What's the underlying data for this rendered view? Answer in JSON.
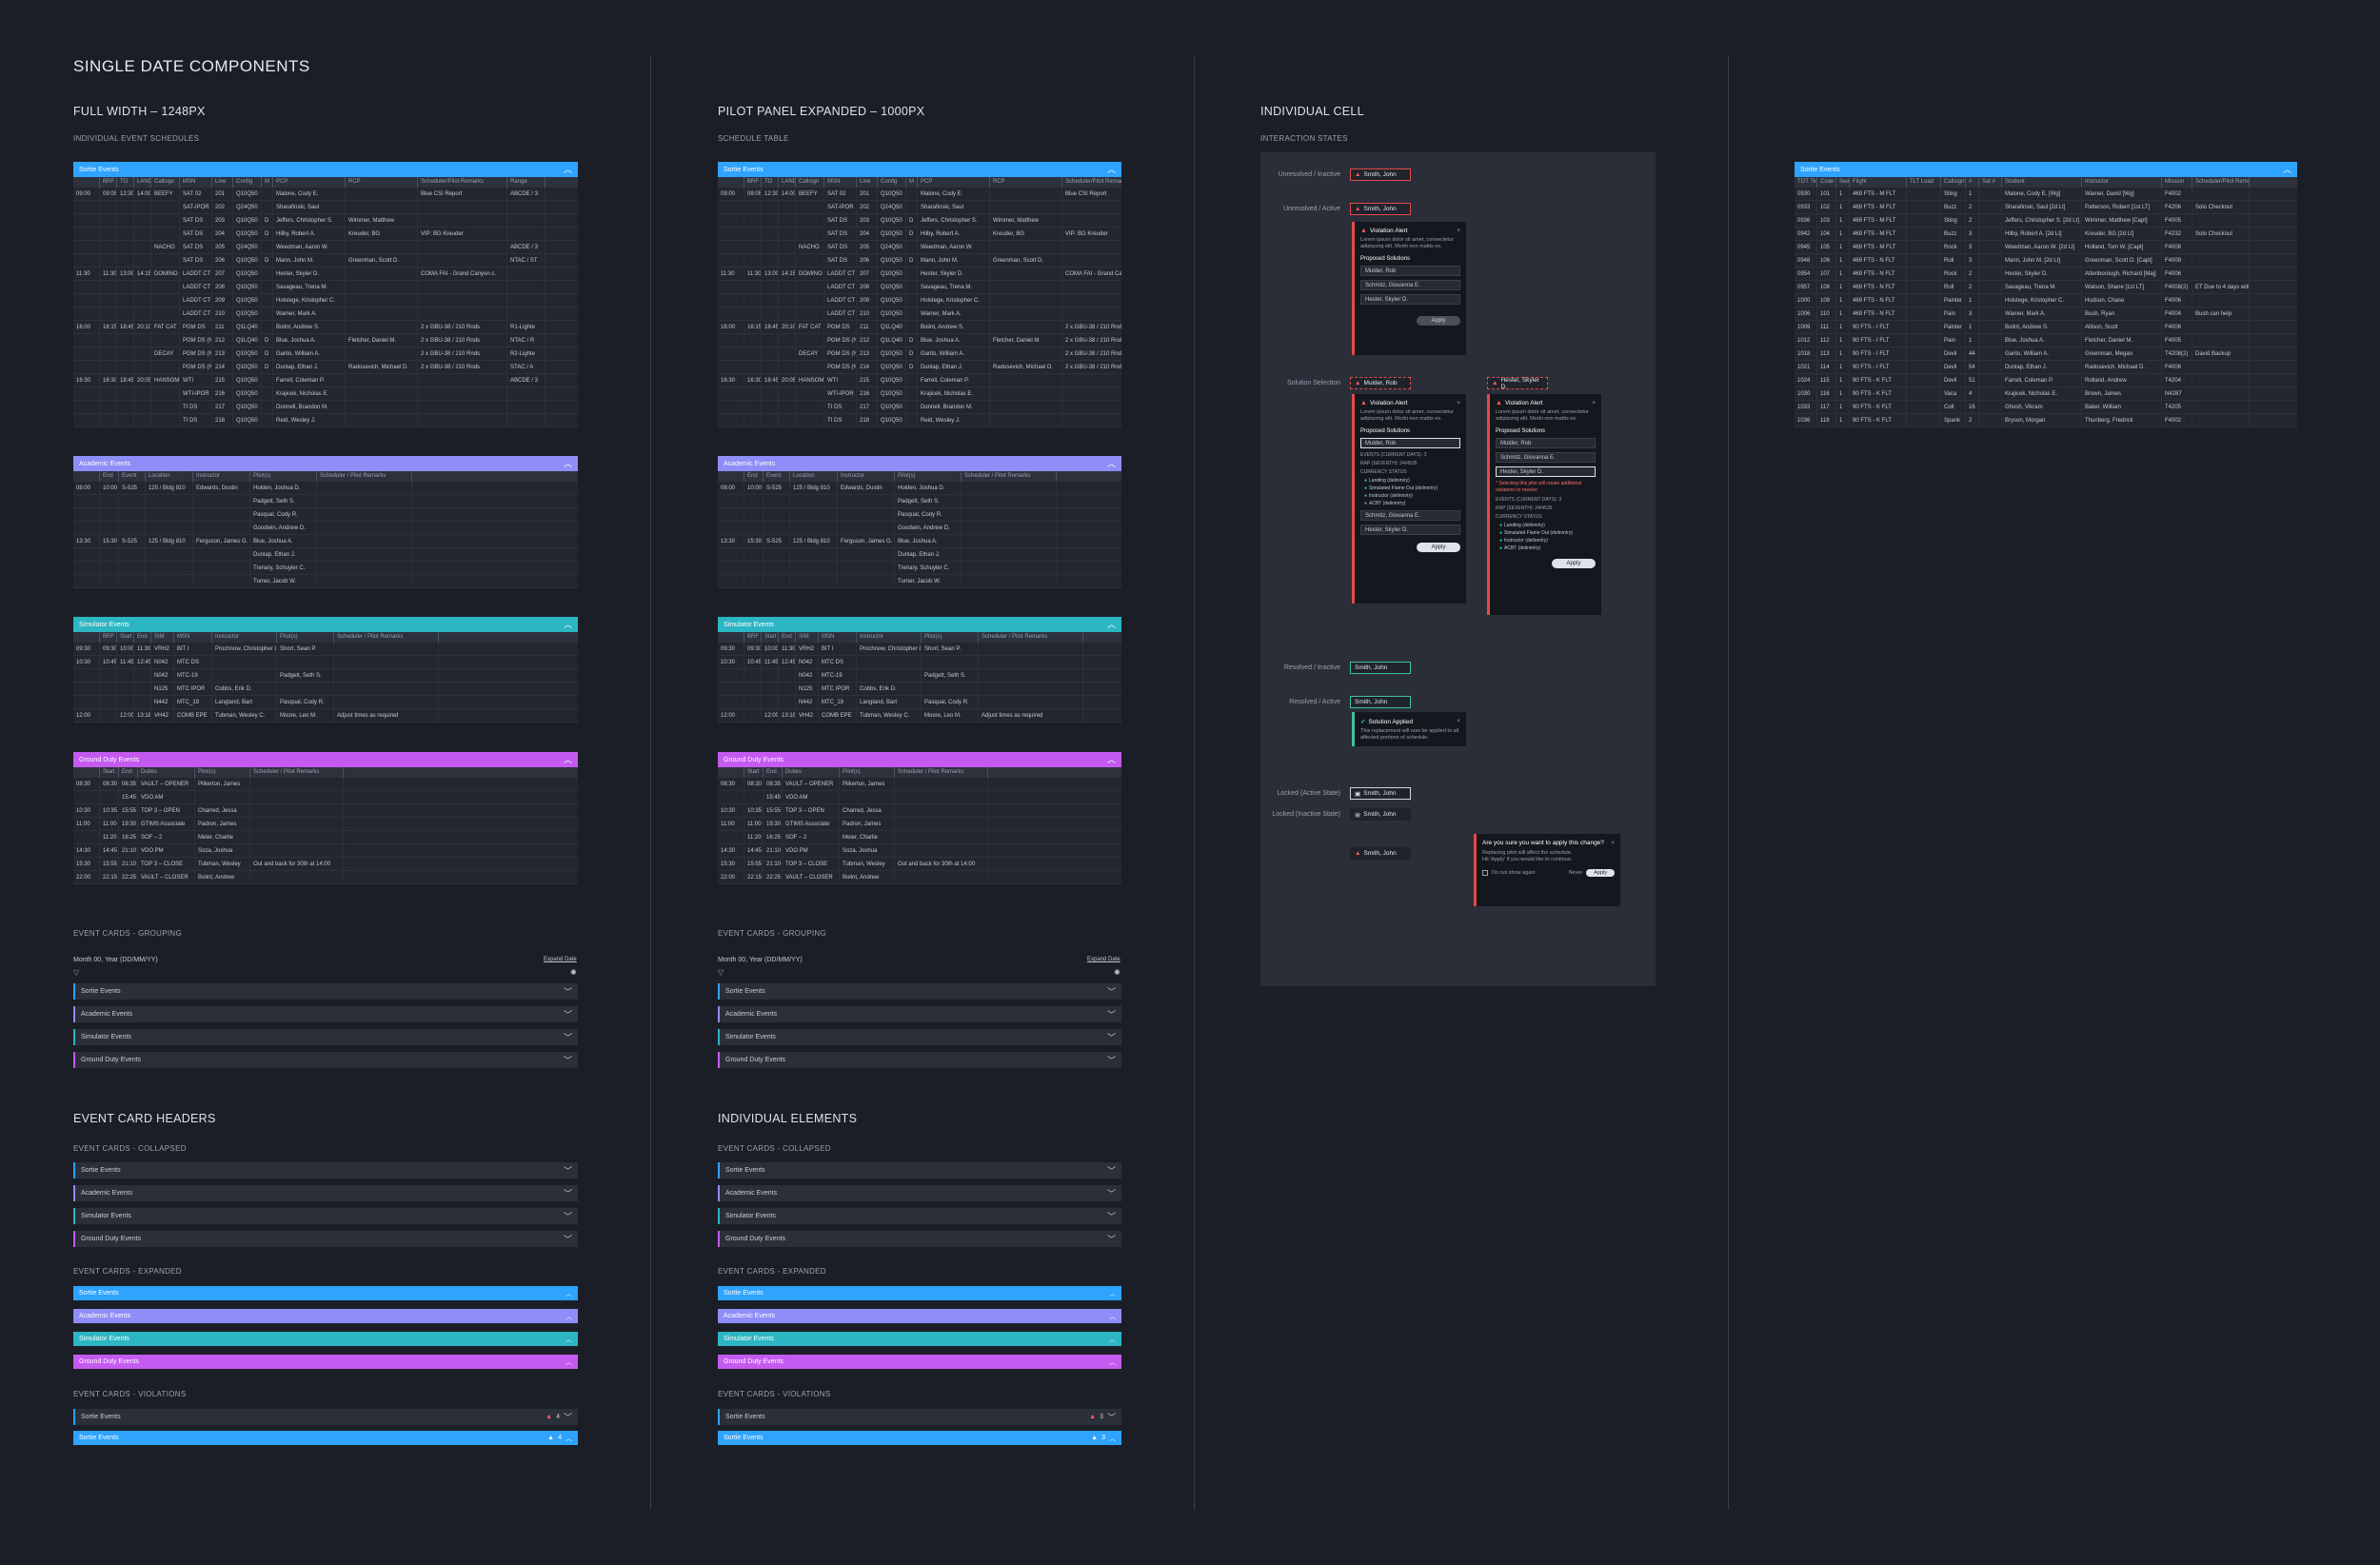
{
  "colors": {
    "sortie": "#2ea3ff",
    "academic": "#8f8df7",
    "simulator": "#2cb5c2",
    "ground": "#c45af0",
    "alert": "#e24a4a",
    "resolved": "#3ec2a2"
  },
  "titles": {
    "main": "SINGLE DATE COMPONENTS",
    "full_width": "FULL WIDTH – 1248PX",
    "pilot_panel": "PILOT PANEL EXPANDED – 1000PX",
    "individual_cell": "INDIVIDUAL CELL",
    "event_card_headers": "EVENT CARD HEADERS",
    "individual_elements": "INDIVIDUAL ELEMENTS"
  },
  "subtitles": {
    "schedules": "INDIVIDUAL EVENT SCHEDULES",
    "schedule_table": "SCHEDULE TABLE",
    "interaction_states": "INTERACTION STATES",
    "grouping": "EVENT CARDS - GROUPING",
    "collapsed": "EVENT CARDS - COLLAPSED",
    "expanded": "EVENT CARDS - EXPANDED",
    "violations": "EVENT CARDS - VIOLATIONS"
  },
  "events": {
    "sortie": "Sortie Events",
    "academic": "Academic Events",
    "simulator": "Simulator Events",
    "ground": "Ground Duty Events"
  },
  "grouping": {
    "date": "Month 00, Year (DD/MM/YY)",
    "expand": "Expand Date"
  },
  "sortie_cols": [
    "",
    "BRF",
    "TO",
    "LAND",
    "Callsign",
    "MSN",
    "Line",
    "Config",
    "M",
    "PCP",
    "RCP",
    "Scheduler/Pilot Remarks",
    "Range"
  ],
  "sortie_rows": [
    [
      "09:00",
      "09:05",
      "12:30",
      "14:00",
      "BEEFY",
      "SAT 02",
      "201",
      "Q10Q50",
      "",
      "Malone, Cody E.",
      "",
      "Blue CSI Report",
      "ABCDE / 3"
    ],
    [
      "",
      "",
      "",
      "",
      "",
      "SAT-IPOR",
      "202",
      "Q24Q50",
      "",
      "Sharafinski, Saul",
      "",
      "",
      ""
    ],
    [
      "",
      "",
      "",
      "",
      "",
      "SAT DS",
      "203",
      "Q10Q50",
      "D",
      "Jeffers, Christopher S.",
      "Wimmer, Matthew",
      "",
      ""
    ],
    [
      "",
      "",
      "",
      "",
      "",
      "SAT DS",
      "204",
      "Q10Q50",
      "D",
      "Hilby, Robert A.",
      "Kreuder, BG",
      "VIP: BG Kreuder",
      ""
    ],
    [
      "",
      "",
      "",
      "",
      "NACHO",
      "SAT DS",
      "205",
      "Q24Q50",
      "",
      "Weedman, Aaron W.",
      "",
      "",
      "ABCDE / 3"
    ],
    [
      "",
      "",
      "",
      "",
      "",
      "SAT DS",
      "206",
      "Q10Q50",
      "D",
      "Mann, John M.",
      "Greenman, Scott D.",
      "",
      "NTAC / ST"
    ],
    [
      "11:30",
      "11:30",
      "13:00",
      "14:15",
      "DOMINO",
      "LADDT CT",
      "207",
      "Q10Q50",
      "",
      "Hester, Skyler D.",
      "",
      "COMA FAI - Grand Canyon c.",
      ""
    ],
    [
      "",
      "",
      "",
      "",
      "",
      "LADDT CT",
      "208",
      "Q10Q50",
      "",
      "Savageau, Trena M.",
      "",
      "",
      ""
    ],
    [
      "",
      "",
      "",
      "",
      "",
      "LADDT CT",
      "209",
      "Q10Q50",
      "",
      "Holstege, Kristopher C.",
      "",
      "",
      ""
    ],
    [
      "",
      "",
      "",
      "",
      "",
      "LADDT CT",
      "210",
      "Q10Q50",
      "",
      "Warner, Mark A.",
      "",
      "",
      ""
    ],
    [
      "16:00",
      "16:15",
      "18:45",
      "20:10",
      "FAT CAT",
      "PGM DS",
      "211",
      "Q1LQ40",
      "",
      "Bolint, Andrew S.",
      "",
      "2 x GBU-38 / 210 Rnds",
      "R1-Lighte"
    ],
    [
      "",
      "",
      "",
      "",
      "",
      "PGM DS (N)",
      "212",
      "Q1LQ40",
      "D",
      "Blue, Joshua A.",
      "Fletcher, Daniel M.",
      "2 x GBU-38 / 210 Rnds",
      "NTAC / R"
    ],
    [
      "",
      "",
      "",
      "",
      "DECAY",
      "PGM DS (N)",
      "213",
      "Q10Q50",
      "D",
      "Garito, William A.",
      "",
      "2 x GBU-38 / 210 Rnds",
      "R2-Lighte"
    ],
    [
      "",
      "",
      "",
      "",
      "",
      "PGM DS (N)",
      "214",
      "Q10Q50",
      "D",
      "Dunlap, Ethan J.",
      "Radosevich, Michael D.",
      "2 x GBU-38 / 210 Rnds",
      "STAC / A"
    ],
    [
      "16:30",
      "16:30",
      "18:45",
      "20:05",
      "HANSOM",
      "WTI",
      "215",
      "Q10Q50",
      "",
      "Farrell, Coleman P.",
      "",
      "",
      "ABCDE / 3"
    ],
    [
      "",
      "",
      "",
      "",
      "",
      "WTI-IPOR",
      "216",
      "Q10Q50",
      "",
      "Krajicek, Nicholas E.",
      "",
      "",
      ""
    ],
    [
      "",
      "",
      "",
      "",
      "",
      "TI DS",
      "217",
      "Q10Q50",
      "",
      "Donnell, Brandon M.",
      "",
      "",
      ""
    ],
    [
      "",
      "",
      "",
      "",
      "",
      "TI DS",
      "218",
      "Q10Q50",
      "",
      "Reid, Wesley J.",
      "",
      "",
      ""
    ]
  ],
  "academic_cols": [
    "",
    "End",
    "Event",
    "Location",
    "Instructor",
    "Pilot(s)",
    "Scheduler / Pilot Remarks"
  ],
  "academic_rows": [
    [
      "08:00",
      "10:00",
      "S-525",
      "125 / Bldg 810",
      "Edwards, Dustin",
      "Holden, Joshua D.",
      ""
    ],
    [
      "",
      "",
      "",
      "",
      "",
      "Padgett, Seth S.",
      ""
    ],
    [
      "",
      "",
      "",
      "",
      "",
      "Pasqual, Cody R.",
      ""
    ],
    [
      "",
      "",
      "",
      "",
      "",
      "Goodwin, Andrew D.",
      ""
    ],
    [
      "13:30",
      "15:30",
      "S-525",
      "125 / Bldg 810",
      "Ferguson, James G.",
      "Blue, Joshua A.",
      ""
    ],
    [
      "",
      "",
      "",
      "",
      "",
      "Dunlap, Ethan J.",
      ""
    ],
    [
      "",
      "",
      "",
      "",
      "",
      "Trenary, Schuyler C.",
      ""
    ],
    [
      "",
      "",
      "",
      "",
      "",
      "Turner, Jacob W.",
      ""
    ]
  ],
  "sim_cols": [
    "",
    "BRF",
    "Start",
    "End",
    "SIM",
    "MSN",
    "Instructor",
    "Pilot(s)",
    "Scheduler / Pilot Remarks"
  ],
  "sim_rows": [
    [
      "09:30",
      "09:30",
      "10:00",
      "11:30",
      "VRH2",
      "BIT I",
      "Prochnow, Christopher L.",
      "Short, Sean P.",
      ""
    ],
    [
      "10:30",
      "10:45",
      "11:45",
      "12:45",
      "N042",
      "MTC DS",
      "",
      "",
      ""
    ],
    [
      "",
      "",
      "",
      "",
      "N042",
      "MTC-19",
      "",
      "Padgett, Seth S.",
      ""
    ],
    [
      "",
      "",
      "",
      "",
      "N125",
      "MTC IPOR",
      "Cobbs, Erik D.",
      "",
      ""
    ],
    [
      "",
      "",
      "",
      "",
      "N442",
      "MTC_19",
      "Langland, Bart",
      "Pasqual, Cody R.",
      ""
    ],
    [
      "12:00",
      "",
      "12:00",
      "13:18",
      "VH42",
      "COMB EPE",
      "Tubman, Wesley C.",
      "Moore, Leo M.",
      "Adjust times as required"
    ]
  ],
  "ground_cols": [
    "",
    "Start",
    "End",
    "Duties",
    "Pilot(s)",
    "Scheduler / Pilot Remarks"
  ],
  "ground_rows": [
    [
      "08:30",
      "08:30",
      "08:35",
      "VAULT – OPENER",
      "Pilkerton, James",
      ""
    ],
    [
      "",
      "",
      "15:45",
      "VDO AM",
      "",
      ""
    ],
    [
      "10:30",
      "10:35",
      "15:55",
      "TOP 3 – OPEN",
      "Charred, Jessa",
      ""
    ],
    [
      "11:00",
      "11:00",
      "19:30",
      "GTIMS Associate",
      "Padron, James",
      ""
    ],
    [
      "",
      "11:20",
      "16:25",
      "SOF – 2",
      "Meier, Charlie",
      ""
    ],
    [
      "14:30",
      "14:45",
      "21:10",
      "VDO PM",
      "Soza, Joshua",
      ""
    ],
    [
      "15:30",
      "15:55",
      "21:10",
      "TOP 3 – CLOSE",
      "Tubman, Wesley",
      "Out and back for 30th at 14:00"
    ],
    [
      "22:00",
      "22:15",
      "22:25",
      "VAULT – CLOSER",
      "Bolint, Andrew",
      ""
    ]
  ],
  "states": {
    "unresolved_inactive": "Unresolved / Inactive",
    "unresolved_active": "Unresolved / Active",
    "solution_selection": "Solution Selection",
    "resolved_inactive": "Resolved / Inactive",
    "resolved_active": "Resolved / Active",
    "locked_active": "Locked (Active State)",
    "locked_inactive": "Locked (Inactive State)"
  },
  "cell_names": {
    "smith": "Smith, John",
    "mulder": "Mulder, Rob",
    "hester": "Hester, Skyler D."
  },
  "violation": {
    "title": "Violation Alert",
    "body": "Lorem ipsum dolor sit amet, consectetur adipiscing elit. Morbi non mattis ex.",
    "proposed": "Proposed Solutions",
    "options": [
      "Mulder, Rob",
      "Schmitz, Giovanna E.",
      "Hester, Skyler D."
    ],
    "apply": "Apply",
    "events_current": "EVENTS (CURRENT DAYS): 3",
    "rap": "RAP (SEVENTH): 24/4535",
    "currency": "CURRENCY STATUS",
    "currency_items": [
      "Landing (delinm/ry)",
      "Simulated Flame Out (delinm/ry)",
      "Instructor (delinm/ry)",
      "ACBT (delinm/ry)"
    ],
    "warning": "* Selecting this pilot will create additional violations to resolve"
  },
  "applied": {
    "title": "Solution Applied",
    "body": "This replacement will now be applied to all affected portions of schedule."
  },
  "confirm": {
    "question": "Are you sure you want to apply this change?",
    "body": "Replacing pilot will affect the schedule.",
    "body2": "Hit 'Apply' if you would like to continue.",
    "dont_show": "Do not show again",
    "cancel": "Never",
    "apply": "Apply"
  },
  "violation_counts": {
    "full_1": "4",
    "full_2": "4",
    "panel_1": "3",
    "panel_2": "3"
  },
  "side_cols": [
    "TOT Time",
    "Code #",
    "Seat",
    "Flight",
    "TLT Load",
    "Callsign",
    "#",
    "Sat #",
    "Student",
    "Instructor",
    "Mission",
    "Scheduler/Pilot Remarks"
  ],
  "side_rows": [
    [
      "0930",
      "101",
      "1",
      "469 FTS - M FLT",
      "",
      "Sting",
      "1",
      "",
      "Malone, Cody E. [Wg]",
      "Warner, David [Wg]",
      "F4002",
      ""
    ],
    [
      "0933",
      "102",
      "1",
      "469 FTS - M FLT",
      "",
      "Buzz",
      "2",
      "",
      "Sharafinski, Saul [2d Lt]",
      "Patterson, Robert [1st LT]",
      "F4206",
      "Solo Checkout"
    ],
    [
      "0936",
      "103",
      "1",
      "469 FTS - M FLT",
      "",
      "Sting",
      "2",
      "",
      "Jeffers, Christopher S. [2d Lt]",
      "Wimmer, Matthew [Capt]",
      "F4005",
      ""
    ],
    [
      "0942",
      "104",
      "1",
      "469 FTS - M FLT",
      "",
      "Buzz",
      "3",
      "",
      "Hilby, Robert A. [2d Lt]",
      "Kreuder, BG [2d Lt]",
      "F4232",
      "Solo Checkout"
    ],
    [
      "0945",
      "105",
      "1",
      "469 FTS - M FLT",
      "",
      "Rock",
      "3",
      "",
      "Weedman, Aaron W. [2d Lt]",
      "Holland, Tom W. [Capt]",
      "F4008",
      ""
    ],
    [
      "0948",
      "106",
      "1",
      "469 FTS - N FLT",
      "",
      "Roll",
      "3",
      "",
      "Mann, John M. [2d Lt]",
      "Greenman, Scott D. [Capt]",
      "F4009",
      ""
    ],
    [
      "0954",
      "107",
      "1",
      "469 FTS - N FLT",
      "",
      "Rock",
      "2",
      "",
      "Hester, Skyler D.",
      "Attenborough, Richard [Maj]",
      "F4006",
      ""
    ],
    [
      "0957",
      "108",
      "1",
      "469 FTS - N FLT",
      "",
      "Roll",
      "2",
      "",
      "Savageau, Trena M.",
      "Watson, Shane [1st LT]",
      "F4008(2)",
      "ET Due to 4 days without"
    ],
    [
      "1000",
      "109",
      "1",
      "469 FTS - N FLT",
      "",
      "Painter",
      "1",
      "",
      "Holstege, Kristopher C.",
      "Hudson, Chase",
      "F4006",
      ""
    ],
    [
      "1006",
      "110",
      "1",
      "469 FTS - N FLT",
      "",
      "Pain",
      "3",
      "",
      "Warner, Mark A.",
      "Bush, Ryan",
      "F4004",
      "Bush can help"
    ],
    [
      "1009",
      "111",
      "1",
      "90 FTS - I FLT",
      "",
      "Painter",
      "1",
      "",
      "Bolint, Andrew S.",
      "Allison, Scott",
      "F4006",
      ""
    ],
    [
      "1012",
      "112",
      "1",
      "90 FTS - I FLT",
      "",
      "Pain",
      "1",
      "",
      "Blue, Joshua A.",
      "Fletcher, Daniel M.",
      "F4005",
      ""
    ],
    [
      "1018",
      "113",
      "1",
      "90 FTS - I FLT",
      "",
      "Devil",
      "44",
      "",
      "Garito, William A.",
      "Greenman, Megan",
      "T4208(2)",
      "David Backup"
    ],
    [
      "1021",
      "114",
      "1",
      "90 FTS - I FLT",
      "",
      "Devil",
      "54",
      "",
      "Dunlap, Ethan J.",
      "Radosevich, Michael D.",
      "F4006",
      ""
    ],
    [
      "1024",
      "115",
      "1",
      "90 FTS - K FLT",
      "",
      "Devil",
      "51",
      "",
      "Farrell, Coleman P.",
      "Rolland, Andrew",
      "T4204",
      ""
    ],
    [
      "1030",
      "116",
      "1",
      "90 FTS - K FLT",
      "",
      "Vaca",
      "4",
      "",
      "Krajicek, Nicholas E.",
      "Brown, James",
      "N4287",
      ""
    ],
    [
      "1033",
      "117",
      "1",
      "90 FTS - K FLT",
      "",
      "Colt",
      "16",
      "",
      "Ghosh, Vikram",
      "Baker, William",
      "T4205",
      ""
    ],
    [
      "1036",
      "118",
      "1",
      "90 FTS - K FLT",
      "",
      "Spank",
      "2",
      "",
      "Bryson, Morgan",
      "Thunberg, Fredrick",
      "F4002",
      ""
    ]
  ]
}
